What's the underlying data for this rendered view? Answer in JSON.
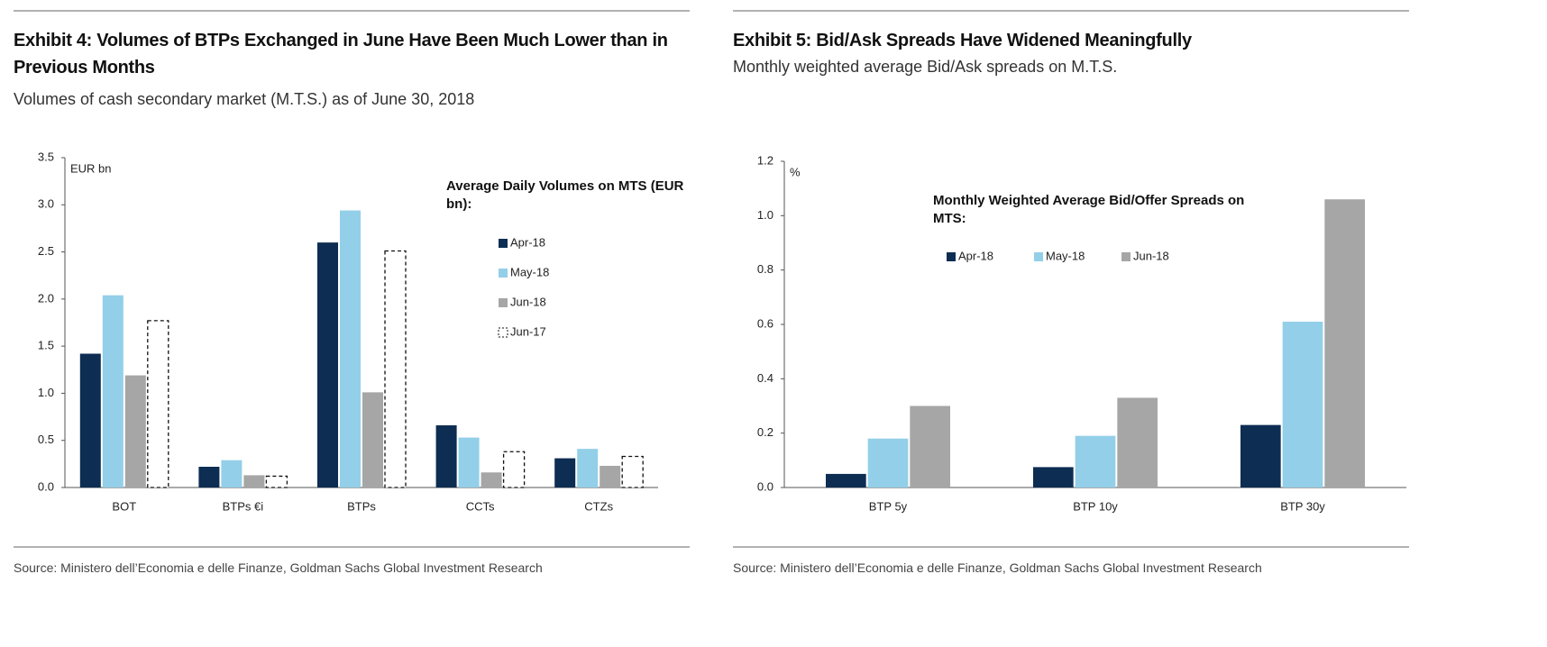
{
  "chart_data": [
    {
      "type": "bar",
      "title": "Exhibit 4: Volumes of BTPs Exchanged in June Have Been Much Lower than in Previous Months",
      "subtitle": "Volumes of cash secondary market (M.T.S.) as of June 30, 2018",
      "source": "Source: Ministero dell’Economia e delle Finanze, Goldman Sachs Global Investment Research",
      "ylabel": "EUR bn",
      "legend_title": "Average Daily Volumes on MTS (EUR bn):",
      "legend_layout": "vertical",
      "categories": [
        "BOT",
        "BTPs €i",
        "BTPs",
        "CCTs",
        "CTZs"
      ],
      "series": [
        {
          "name": "Apr-18",
          "color": "#0d2d52",
          "values": [
            1.42,
            0.22,
            2.6,
            0.66,
            0.31
          ]
        },
        {
          "name": "May-18",
          "color": "#93cfe8",
          "values": [
            2.04,
            0.29,
            2.94,
            0.53,
            0.41
          ]
        },
        {
          "name": "Jun-18",
          "color": "#a6a6a6",
          "values": [
            1.19,
            0.13,
            1.01,
            0.16,
            0.23
          ]
        },
        {
          "name": "Jun-17",
          "color": "#ffffff",
          "border": "dashed",
          "values": [
            1.77,
            0.12,
            2.51,
            0.38,
            0.33
          ]
        }
      ],
      "ylim": [
        0,
        3.5
      ],
      "yticks": [
        {
          "value": 0,
          "label": "0.0"
        },
        0.5,
        {
          "value": 1,
          "label": "1.0"
        },
        1.5,
        {
          "value": 2,
          "label": "2.0"
        },
        2.5,
        {
          "value": 3,
          "label": "3.0"
        },
        3.5
      ],
      "grid": false
    },
    {
      "type": "bar",
      "title": "Exhibit 5: Bid/Ask Spreads Have Widened Meaningfully",
      "subtitle": "Monthly weighted average Bid/Ask spreads on M.T.S.",
      "source": "Source: Ministero dell’Economia e delle Finanze, Goldman Sachs Global Investment Research",
      "ylabel": "%",
      "legend_title": "Monthly Weighted Average Bid/Offer Spreads on MTS:",
      "legend_layout": "horizontal",
      "categories": [
        "BTP 5y",
        "BTP 10y",
        "BTP 30y"
      ],
      "series": [
        {
          "name": "Apr-18",
          "color": "#0d2d52",
          "values": [
            0.05,
            0.075,
            0.23
          ]
        },
        {
          "name": "May-18",
          "color": "#93cfe8",
          "values": [
            0.18,
            0.19,
            0.61
          ]
        },
        {
          "name": "Jun-18",
          "color": "#a6a6a6",
          "values": [
            0.3,
            0.33,
            1.06
          ]
        }
      ],
      "ylim": [
        0,
        1.2
      ],
      "yticks": [
        {
          "value": 0,
          "label": "0.0"
        },
        0.2,
        0.4,
        0.6,
        0.8,
        {
          "value": 1,
          "label": "1.0"
        },
        1.2
      ],
      "grid": false
    }
  ]
}
